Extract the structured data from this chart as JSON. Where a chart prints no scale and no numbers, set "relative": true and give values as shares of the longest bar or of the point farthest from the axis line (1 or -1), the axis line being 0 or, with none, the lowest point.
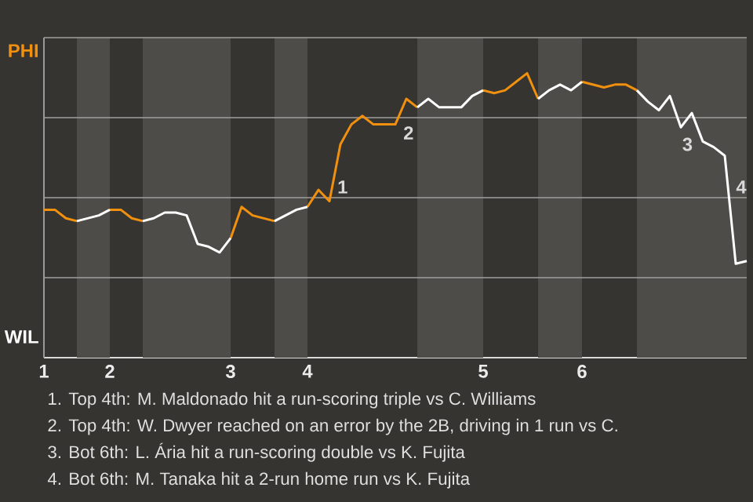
{
  "chart_data": {
    "type": "line",
    "relative": true,
    "categories": [
      "1",
      null,
      null,
      null,
      null,
      null,
      "2",
      null,
      null,
      null,
      null,
      null,
      null,
      null,
      null,
      null,
      null,
      "3",
      null,
      null,
      null,
      null,
      null,
      null,
      "4",
      null,
      null,
      null,
      null,
      null,
      null,
      null,
      null,
      null,
      null,
      null,
      null,
      null,
      null,
      null,
      "5",
      null,
      null,
      null,
      null,
      null,
      null,
      null,
      null,
      "6",
      null,
      null,
      null,
      null,
      null,
      null,
      null,
      null,
      null,
      null,
      null,
      null,
      null,
      null,
      null
    ],
    "series": [
      {
        "color": "#f0900e",
        "values": [
          0.52,
          0.52,
          0.49,
          0.48,
          null,
          null,
          0.52,
          0.52,
          0.49,
          0.48,
          null,
          null,
          null,
          null,
          null,
          null,
          null,
          0.42,
          0.53,
          0.5,
          0.49,
          0.48,
          null,
          null,
          0.53,
          0.59,
          0.55,
          0.75,
          0.82,
          0.85,
          0.82,
          0.82,
          0.82,
          0.91,
          0.88,
          null,
          null,
          null,
          null,
          null,
          0.94,
          0.93,
          0.94,
          0.97,
          1,
          0.91,
          null,
          null,
          null,
          0.97,
          0.96,
          0.95,
          0.96,
          0.96,
          0.94,
          null,
          null,
          null,
          null,
          null,
          null,
          null,
          null,
          null,
          null
        ]
      },
      {
        "color": "#ffffff",
        "values": [
          null,
          null,
          null,
          0.48,
          0.49,
          0.5,
          0.52,
          null,
          null,
          0.48,
          0.49,
          0.51,
          0.51,
          0.5,
          0.4,
          0.39,
          0.37,
          0.42,
          null,
          null,
          null,
          0.48,
          0.5,
          0.52,
          0.53,
          null,
          null,
          null,
          null,
          null,
          null,
          null,
          null,
          null,
          0.88,
          0.91,
          0.88,
          0.88,
          0.88,
          0.92,
          0.94,
          null,
          null,
          null,
          null,
          0.91,
          0.94,
          0.96,
          0.94,
          0.97,
          null,
          null,
          null,
          null,
          0.94,
          0.9,
          0.87,
          0.92,
          0.81,
          0.86,
          0.76,
          0.74,
          0.71,
          0.33,
          0.34
        ]
      }
    ],
    "grid": "y",
    "annotations": [
      "PHI",
      "WIL",
      "1",
      "2",
      "3",
      "4",
      "1. Top 4th: M. Maldonado hit a run-scoring triple vs C. Williams",
      "2. Top 4th: W. Dwyer reached on an error by the 2B, driving in 1 run vs C.",
      "3. Bot 6th: L. Ária hit a run-scoring double vs K. Fujita",
      "4. Bot 6th: M. Tanaka hit a 2-run home run vs K. Fujita"
    ]
  }
}
